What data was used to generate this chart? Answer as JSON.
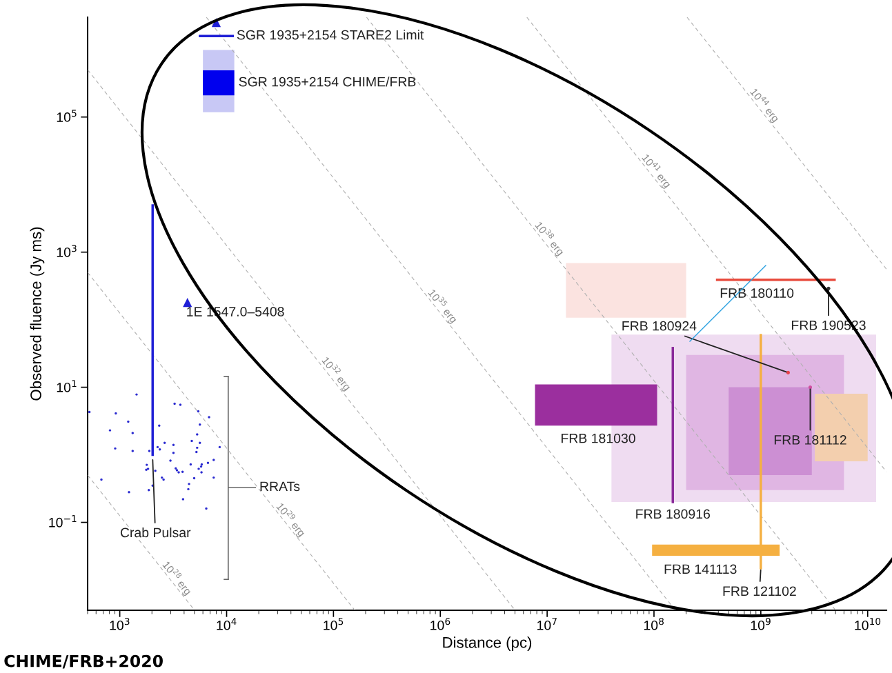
{
  "chart_data": {
    "type": "scatter",
    "xlabel": "Distance (pc)",
    "ylabel": "Observed fluence (Jy ms)",
    "log": "xy",
    "xlim": [
      500,
      15000000000.0
    ],
    "ylim": [
      0.005,
      3000000.0
    ],
    "xticks": [
      {
        "value": 1000,
        "label": "10$^{3}$"
      },
      {
        "value": 10000,
        "label": "10$^{4}$"
      },
      {
        "value": 100000,
        "label": "10$^{5}$"
      },
      {
        "value": 1000000,
        "label": "10$^{6}$"
      },
      {
        "value": 10000000,
        "label": "10$^{7}$"
      },
      {
        "value": 100000000,
        "label": "10$^{8}$"
      },
      {
        "value": 1000000000,
        "label": "10$^{9}$"
      },
      {
        "value": 10000000000,
        "label": "10$^{10}$"
      }
    ],
    "yticks": [
      {
        "value": 0.1,
        "label": "10$^{−1}$"
      },
      {
        "value": 10,
        "label": "10$^{1}$"
      },
      {
        "value": 1000,
        "label": "10$^{3}$"
      },
      {
        "value": 100000,
        "label": "10$^{5}$"
      }
    ],
    "grid": false,
    "legend": false,
    "series": [
      {
        "type": "line",
        "color": "#fbe3e0",
        "x": [
          15000000.0,
          200000000.0
        ],
        "values": [
          null,
          null
        ],
        "lower": [
          107,
          107
        ],
        "upper": [
          690,
          690
        ]
      },
      {
        "type": "line",
        "color": "#efdcf1",
        "x": [
          40000000.0,
          12000000000.0
        ],
        "values": [
          null,
          null
        ],
        "lower": [
          0.2,
          0.2
        ],
        "upper": [
          60,
          60
        ]
      },
      {
        "type": "line",
        "color": "#e0b6e3",
        "x": [
          200000000.0,
          6000000000.0
        ],
        "values": [
          null,
          null
        ],
        "lower": [
          0.3,
          0.3
        ],
        "upper": [
          30,
          30
        ]
      },
      {
        "type": "line",
        "color": "#f3cfae",
        "x": [
          3200000000.0,
          10000000000.0
        ],
        "values": [
          null,
          null
        ],
        "lower": [
          0.8,
          0.8
        ],
        "upper": [
          8,
          8
        ]
      },
      {
        "type": "line",
        "color": "#cc8fd3",
        "x": [
          500000000.0,
          3000000000.0
        ],
        "values": [
          null,
          null
        ],
        "lower": [
          0.5,
          0.5
        ],
        "upper": [
          10,
          10
        ]
      },
      {
        "type": "line",
        "color": "#b0b0b0",
        "line_style": "dashed",
        "x": [
          500,
          5012
        ],
        "values": [
          0.501,
          0.005
        ]
      },
      {
        "type": "line",
        "color": "#b0b0b0",
        "line_style": "dashed",
        "x": [
          500,
          158500
        ],
        "values": [
          501,
          0.005
        ]
      },
      {
        "type": "line",
        "color": "#b0b0b0",
        "line_style": "dashed",
        "x": [
          500,
          5010000.0
        ],
        "values": [
          501000.0,
          0.005
        ]
      },
      {
        "type": "line",
        "color": "#b0b0b0",
        "line_style": "dashed",
        "x": [
          6460,
          158500000.0
        ],
        "values": [
          3000000.0,
          0.005
        ]
      },
      {
        "type": "line",
        "color": "#b0b0b0",
        "line_style": "dashed",
        "x": [
          204000.0,
          5010000000.0
        ],
        "values": [
          3000000.0,
          0.005
        ]
      },
      {
        "type": "line",
        "color": "#b0b0b0",
        "line_style": "dashed",
        "x": [
          6460000.0,
          15000000000.0
        ],
        "values": [
          3000000.0,
          0.56
        ]
      },
      {
        "type": "line",
        "color": "#b0b0b0",
        "line_style": "dashed",
        "x": [
          204000000.0,
          15000000000.0
        ],
        "values": [
          3000000.0,
          560
        ]
      },
      {
        "color": "#2a2ad0",
        "marker": "circle",
        "x": [
          1436,
          3260,
          3690,
          918,
          520,
          5430,
          6850,
          1200,
          5620,
          2340,
          810,
          1320,
          5300,
          4720,
          5620,
          2630,
          906,
          1320,
          1890,
          2260,
          2370,
          3180,
          3180,
          5300,
          5220,
          8610,
          2980,
          7570,
          6690,
          1790,
          4610,
          5850,
          5770,
          1770,
          1840,
          2150,
          3340,
          3430,
          3560,
          3870,
          5480,
          5820,
          2480,
          2570,
          4970,
          7570,
          673,
          2030,
          4450,
          1870,
          4380,
          1220,
          3910,
          6450
        ],
        "values": [
          7.8,
          5.7,
          5.5,
          4.1,
          4.3,
          4.4,
          3.6,
          3.1,
          2.8,
          2.7,
          2.3,
          2.1,
          2.0,
          1.6,
          1.5,
          1.5,
          1.24,
          1.14,
          1.14,
          1.3,
          1.2,
          1.4,
          1.07,
          1.27,
          1.1,
          1.3,
          0.82,
          0.84,
          0.76,
          0.71,
          0.72,
          0.72,
          0.67,
          0.6,
          0.62,
          0.58,
          0.63,
          0.59,
          0.55,
          0.56,
          0.62,
          0.55,
          0.46,
          0.43,
          0.45,
          0.46,
          0.43,
          0.35,
          0.37,
          0.3,
          0.31,
          0.28,
          0.22,
          0.16
        ]
      },
      {
        "type": "line",
        "color": "#1f1fd6",
        "x": [
          2030,
          2030
        ],
        "values": [
          4900,
          1.0
        ]
      },
      {
        "color": "#1f1fd6",
        "marker": "triangle",
        "x": [
          4300
        ],
        "values": [
          180
        ]
      },
      {
        "type": "line",
        "color": "#1f1fd6",
        "name": "SGR 1935+2154 STARE2 Limit",
        "x": [
          5630,
          11400
        ],
        "values": [
          1580000.0,
          1580000.0
        ]
      },
      {
        "color": "#1f1fd6",
        "marker": "triangle",
        "x": [
          8000
        ],
        "values": [
          2500000.0
        ]
      },
      {
        "type": "line",
        "color": "#c8c8f5",
        "x": [
          6000,
          11800
        ],
        "values": [
          null,
          null
        ],
        "lower": [
          118000.0,
          118000.0
        ],
        "upper": [
          980000.0,
          980000.0
        ]
      },
      {
        "type": "area",
        "color": "#0000ee",
        "x": [
          6000,
          11800
        ],
        "values": [
          null,
          null
        ],
        "lower": [
          210000.0,
          210000.0
        ],
        "upper": [
          490000.0,
          490000.0
        ]
      },
      {
        "type": "line",
        "color": "#9b2f9e",
        "x": [
          7700000.0,
          107000000.0
        ],
        "values": [
          null,
          null
        ],
        "lower": [
          2.7,
          2.7
        ],
        "upper": [
          11,
          11
        ]
      },
      {
        "type": "line",
        "color": "#8a2a9a",
        "x": [
          150000000.0,
          150000000.0
        ],
        "values": [
          38,
          0.2
        ]
      },
      {
        "type": "line",
        "color": "#f5b041",
        "x": [
          1000000000.0,
          1000000000.0
        ],
        "values": [
          59,
          0.021
        ]
      },
      {
        "type": "line",
        "color": "#f5b041",
        "x": [
          96000000.0,
          1500000000.0
        ],
        "values": [
          null,
          null
        ],
        "lower": [
          0.032,
          0.032
        ],
        "upper": [
          0.047,
          0.047
        ]
      },
      {
        "type": "line",
        "color": "#e84a3c",
        "x": [
          390000000.0,
          4900000000.0
        ],
        "values": [
          390,
          390
        ]
      },
      {
        "color": "#e8404a",
        "marker": "circle",
        "x": [
          1800000000.0
        ],
        "values": [
          16.5
        ]
      },
      {
        "color": "#d050a0",
        "marker": "circle",
        "x": [
          2900000000.0
        ],
        "values": [
          10
        ]
      },
      {
        "color": "#333333",
        "marker": "circle",
        "x": [
          4300000000.0
        ],
        "values": [
          290
        ]
      }
    ],
    "annotations": [
      {
        "text": "Crab Pulsar",
        "x": 2030,
        "y": 0.9
      },
      "RRATs",
      {
        "text": "1E 1547.0–5408",
        "x": 4300,
        "y": 180
      },
      {
        "text": "FRB 181030",
        "x": 30000000.0,
        "y": 2.7
      },
      {
        "text": "FRB 180916",
        "x": 150000000.0,
        "y": 0.2
      },
      {
        "text": "FRB 141113",
        "x": 400000000.0,
        "y": 0.032
      },
      {
        "text": "FRB 121102",
        "x": 1000000000.0,
        "y": 0.021
      },
      {
        "text": "FRB 181112",
        "x": 2900000000.0,
        "y": 10
      },
      {
        "text": "FRB 180924",
        "x": 1800000000.0,
        "y": 16.5
      },
      {
        "text": "FRB 180110",
        "x": 1200000000.0,
        "y": 390
      },
      {
        "text": "FRB 190523",
        "x": 4300000000.0,
        "y": 290
      },
      {
        "text": "SGR 1935+2154 CHIME/FRB",
        "x": 11800,
        "y": 320000.0
      },
      {
        "text": "10$^{28}$ erg",
        "x": 3100,
        "y": 0.013
      },
      {
        "text": "10$^{29}$ erg",
        "x": 36000,
        "y": 0.095
      },
      {
        "text": "10$^{32}$ erg",
        "x": 96000,
        "y": 13.8
      },
      {
        "text": "10$^{35}$ erg",
        "x": 950000,
        "y": 138
      },
      {
        "text": "10$^{38}$ erg",
        "x": 9500000,
        "y": 1380
      },
      {
        "text": "10$^{41}$ erg",
        "x": 95000000,
        "y": 13800
      },
      {
        "text": "10$^{44}$ erg",
        "x": 980000000,
        "y": 130000
      },
      "CHIME/FRB+2020"
    ]
  }
}
